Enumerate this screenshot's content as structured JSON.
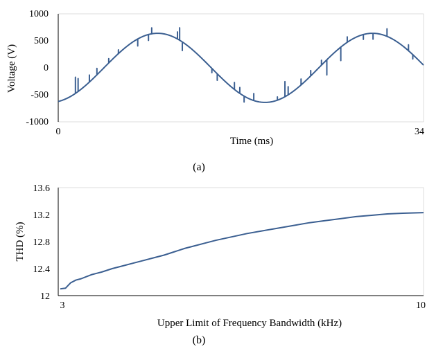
{
  "chart_data": [
    {
      "type": "line",
      "panel": "(a)",
      "xlabel": "Time (ms)",
      "ylabel": "Voltage (V)",
      "xlim": [
        0,
        34
      ],
      "ylim": [
        -1000,
        1000
      ],
      "x_ticks": [
        "0",
        "34"
      ],
      "y_ticks": [
        "1000",
        "500",
        "0",
        "-500",
        "-1000"
      ],
      "grid": false,
      "series_color": "#3b5f91",
      "sinusoid": {
        "amplitude": 640,
        "period_ms": 20,
        "phase_ms": 4.25
      },
      "spikes": [
        {
          "t": 1.6,
          "dv": 300
        },
        {
          "t": 1.85,
          "dv": 240
        },
        {
          "t": 2.9,
          "dv": 130
        },
        {
          "t": 3.6,
          "dv": 120
        },
        {
          "t": 4.7,
          "dv": 80
        },
        {
          "t": 5.6,
          "dv": 70
        },
        {
          "t": 7.4,
          "dv": -130
        },
        {
          "t": 8.4,
          "dv": -110
        },
        {
          "t": 8.7,
          "dv": 110
        },
        {
          "t": 11.1,
          "dv": 130
        },
        {
          "t": 11.3,
          "dv": 230
        },
        {
          "t": 11.55,
          "dv": -160
        },
        {
          "t": 14.3,
          "dv": -80
        },
        {
          "t": 14.8,
          "dv": -120
        },
        {
          "t": 16.4,
          "dv": 130
        },
        {
          "t": 16.9,
          "dv": 110
        },
        {
          "t": 17.3,
          "dv": -110
        },
        {
          "t": 18.2,
          "dv": 130
        },
        {
          "t": 20.4,
          "dv": 60
        },
        {
          "t": 21.1,
          "dv": 280
        },
        {
          "t": 21.4,
          "dv": 150
        },
        {
          "t": 22.6,
          "dv": 110
        },
        {
          "t": 23.5,
          "dv": 100
        },
        {
          "t": 24.5,
          "dv": 90
        },
        {
          "t": 25.0,
          "dv": -280
        },
        {
          "t": 26.3,
          "dv": -250
        },
        {
          "t": 26.9,
          "dv": 100
        },
        {
          "t": 28.4,
          "dv": -90
        },
        {
          "t": 29.3,
          "dv": -110
        },
        {
          "t": 30.6,
          "dv": 140
        },
        {
          "t": 32.6,
          "dv": 110
        },
        {
          "t": 33.0,
          "dv": -80
        }
      ]
    },
    {
      "type": "line",
      "panel": "(b)",
      "xlabel": "Upper Limit of Frequency Bandwidth (kHz)",
      "ylabel": "THD (%)",
      "xlim": [
        3,
        10
      ],
      "ylim": [
        12,
        13.6
      ],
      "x_ticks": [
        "3",
        "10"
      ],
      "y_ticks": [
        "13.6",
        "13.2",
        "12.8",
        "12.4",
        "12"
      ],
      "grid": false,
      "series_color": "#3b5f91",
      "x": [
        3.0,
        3.1,
        3.15,
        3.2,
        3.3,
        3.4,
        3.5,
        3.6,
        3.7,
        3.8,
        4.0,
        4.2,
        4.4,
        4.6,
        4.8,
        5.0,
        5.2,
        5.4,
        5.6,
        5.8,
        6.0,
        6.3,
        6.6,
        6.9,
        7.2,
        7.5,
        7.8,
        8.1,
        8.4,
        8.7,
        9.0,
        9.3,
        9.6,
        10.0
      ],
      "y": [
        12.1,
        12.11,
        12.15,
        12.19,
        12.23,
        12.25,
        12.28,
        12.31,
        12.33,
        12.35,
        12.4,
        12.44,
        12.48,
        12.52,
        12.56,
        12.6,
        12.65,
        12.7,
        12.74,
        12.78,
        12.82,
        12.87,
        12.92,
        12.96,
        13.0,
        13.04,
        13.08,
        13.11,
        13.14,
        13.17,
        13.19,
        13.21,
        13.22,
        13.23
      ]
    }
  ]
}
